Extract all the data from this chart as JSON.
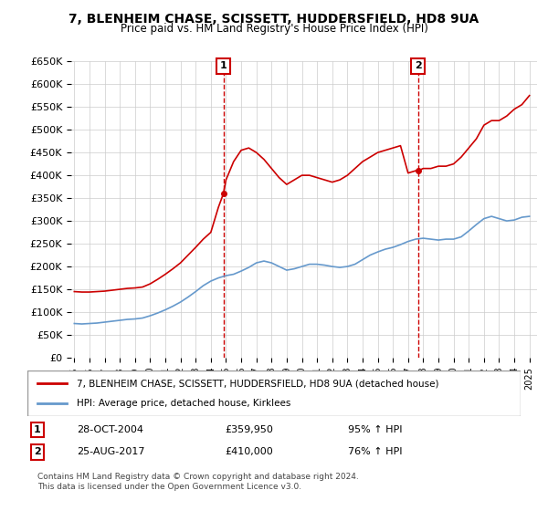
{
  "title": "7, BLENHEIM CHASE, SCISSETT, HUDDERSFIELD, HD8 9UA",
  "subtitle": "Price paid vs. HM Land Registry's House Price Index (HPI)",
  "legend_line1": "7, BLENHEIM CHASE, SCISSETT, HUDDERSFIELD, HD8 9UA (detached house)",
  "legend_line2": "HPI: Average price, detached house, Kirklees",
  "annotation1_label": "1",
  "annotation1_date": "28-OCT-2004",
  "annotation1_price": "£359,950",
  "annotation1_hpi": "95% ↑ HPI",
  "annotation2_label": "2",
  "annotation2_date": "25-AUG-2017",
  "annotation2_price": "£410,000",
  "annotation2_hpi": "76% ↑ HPI",
  "footer": "Contains HM Land Registry data © Crown copyright and database right 2024.\nThis data is licensed under the Open Government Licence v3.0.",
  "sale1_x": 2004.83,
  "sale1_y": 359950,
  "sale2_x": 2017.65,
  "sale2_y": 410000,
  "red_color": "#cc0000",
  "blue_color": "#6699cc",
  "background_color": "#ffffff",
  "ylim": [
    0,
    650000
  ],
  "xlim": [
    1995,
    2025.5
  ],
  "ytick_interval": 50000,
  "hpi_x": [
    1995,
    1995.5,
    1996,
    1996.5,
    1997,
    1997.5,
    1998,
    1998.5,
    1999,
    1999.5,
    2000,
    2000.5,
    2001,
    2001.5,
    2002,
    2002.5,
    2003,
    2003.5,
    2004,
    2004.5,
    2005,
    2005.5,
    2006,
    2006.5,
    2007,
    2007.5,
    2008,
    2008.5,
    2009,
    2009.5,
    2010,
    2010.5,
    2011,
    2011.5,
    2012,
    2012.5,
    2013,
    2013.5,
    2014,
    2014.5,
    2015,
    2015.5,
    2016,
    2016.5,
    2017,
    2017.5,
    2018,
    2018.5,
    2019,
    2019.5,
    2020,
    2020.5,
    2021,
    2021.5,
    2022,
    2022.5,
    2023,
    2023.5,
    2024,
    2024.5,
    2025
  ],
  "hpi_y": [
    75000,
    74000,
    75000,
    76000,
    78000,
    80000,
    82000,
    84000,
    85000,
    87000,
    92000,
    98000,
    105000,
    113000,
    122000,
    133000,
    145000,
    158000,
    168000,
    175000,
    180000,
    183000,
    190000,
    198000,
    208000,
    212000,
    208000,
    200000,
    192000,
    195000,
    200000,
    205000,
    205000,
    203000,
    200000,
    198000,
    200000,
    205000,
    215000,
    225000,
    232000,
    238000,
    242000,
    248000,
    255000,
    260000,
    262000,
    260000,
    258000,
    260000,
    260000,
    265000,
    278000,
    292000,
    305000,
    310000,
    305000,
    300000,
    302000,
    308000,
    310000
  ],
  "property_x": [
    1995,
    1995.5,
    1996,
    1996.5,
    1997,
    1997.5,
    1998,
    1998.5,
    1999,
    1999.5,
    2000,
    2000.5,
    2001,
    2001.5,
    2002,
    2002.5,
    2003,
    2003.5,
    2004,
    2004.5,
    2004.83,
    2005,
    2005.5,
    2006,
    2006.5,
    2007,
    2007.5,
    2008,
    2008.5,
    2009,
    2009.5,
    2010,
    2010.5,
    2011,
    2011.5,
    2012,
    2012.5,
    2013,
    2013.5,
    2014,
    2014.5,
    2015,
    2015.5,
    2016,
    2016.5,
    2017,
    2017.5,
    2017.65,
    2018,
    2018.5,
    2019,
    2019.5,
    2020,
    2020.5,
    2021,
    2021.5,
    2022,
    2022.5,
    2023,
    2023.5,
    2024,
    2024.5,
    2025
  ],
  "property_y": [
    145000,
    144000,
    144000,
    145000,
    146000,
    148000,
    150000,
    152000,
    153000,
    155000,
    162000,
    172000,
    183000,
    195000,
    208000,
    225000,
    242000,
    260000,
    275000,
    330000,
    359950,
    390000,
    430000,
    455000,
    460000,
    450000,
    435000,
    415000,
    395000,
    380000,
    390000,
    400000,
    400000,
    395000,
    390000,
    385000,
    390000,
    400000,
    415000,
    430000,
    440000,
    450000,
    455000,
    460000,
    465000,
    405000,
    410000,
    410000,
    415000,
    415000,
    420000,
    420000,
    425000,
    440000,
    460000,
    480000,
    510000,
    520000,
    520000,
    530000,
    545000,
    555000,
    575000
  ]
}
